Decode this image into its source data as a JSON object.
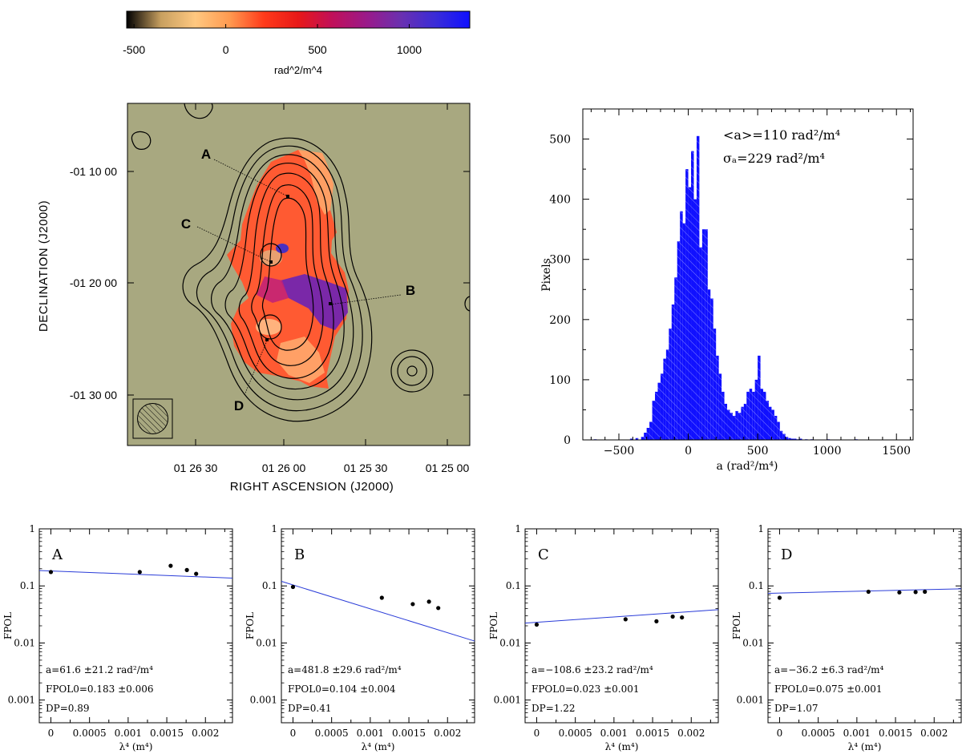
{
  "colorbar": {
    "ticks": [
      "-500",
      "0",
      "500",
      "1000"
    ],
    "tick_values": [
      -500,
      0,
      500,
      1000
    ],
    "range": [
      -540,
      1330
    ],
    "unit_label": "rad^2/m^4",
    "colors": [
      "#000000",
      "#c8a060",
      "#ffc880",
      "#ff9a50",
      "#ff3a1a",
      "#e81818",
      "#c0105a",
      "#9a1a8a",
      "#6a30b0",
      "#3a2cd8",
      "#1010ff"
    ]
  },
  "map": {
    "xlabel": "RIGHT ASCENSION  (J2000)",
    "ylabel": "DECLINATION  (J2000)",
    "x_ticks": [
      "01 26 30",
      "01 26 00",
      "01 25 30",
      "01 25 00"
    ],
    "y_ticks": [
      "-01 10 00",
      "-01 20 00",
      "-01 30 00"
    ],
    "regions": [
      {
        "name": "A"
      },
      {
        "name": "B"
      },
      {
        "name": "C"
      },
      {
        "name": "D"
      }
    ],
    "colors": {
      "background": "#a8a880",
      "contour": "#000000",
      "emission": "#ff5a32"
    }
  },
  "chart_data": [
    {
      "type": "bar",
      "id": "histogram",
      "title": "",
      "xlabel": "a (rad²/m⁴)",
      "ylabel": "Pixels",
      "xlim": [
        -760,
        1620
      ],
      "ylim": [
        0,
        550
      ],
      "x_ticks": [
        "−500",
        "0",
        "500",
        "1000",
        "1500"
      ],
      "x_tick_values": [
        -500,
        0,
        500,
        1000,
        1500
      ],
      "y_ticks": [
        "0",
        "100",
        "200",
        "300",
        "400",
        "500"
      ],
      "y_tick_values": [
        0,
        100,
        200,
        300,
        400,
        500
      ],
      "bin_width": 20,
      "bins_x": [
        -670,
        -410,
        -370,
        -330,
        -310,
        -290,
        -270,
        -250,
        -230,
        -210,
        -190,
        -170,
        -150,
        -130,
        -110,
        -90,
        -70,
        -50,
        -30,
        -10,
        10,
        30,
        50,
        70,
        90,
        110,
        130,
        150,
        170,
        190,
        210,
        230,
        250,
        270,
        290,
        310,
        330,
        350,
        370,
        390,
        410,
        430,
        450,
        470,
        490,
        510,
        530,
        550,
        570,
        590,
        610,
        630,
        650,
        670,
        690,
        710,
        730,
        750,
        770,
        790,
        810,
        850,
        890,
        1010,
        1210
      ],
      "counts": [
        1,
        2,
        3,
        5,
        12,
        20,
        30,
        65,
        80,
        95,
        110,
        135,
        150,
        185,
        225,
        270,
        330,
        380,
        360,
        450,
        420,
        480,
        400,
        505,
        320,
        350,
        350,
        250,
        235,
        185,
        140,
        110,
        80,
        60,
        50,
        45,
        40,
        48,
        45,
        55,
        60,
        80,
        85,
        80,
        100,
        140,
        85,
        80,
        65,
        55,
        50,
        40,
        30,
        15,
        10,
        5,
        3,
        2,
        2,
        1,
        2,
        1,
        1,
        1,
        1
      ],
      "annotations": [
        "<a>=110 rad²/m⁴",
        "σₐ=229 rad²/m⁴"
      ],
      "color": "#1010ff"
    },
    {
      "type": "scatter",
      "id": "panel-A",
      "title": "A",
      "xlabel": "λ⁴ (m⁴)",
      "ylabel": "FPOL",
      "yscale": "log",
      "xlim": [
        -0.00015,
        0.00235
      ],
      "ylim": [
        0.0004,
        1.0
      ],
      "x_ticks": [
        "0",
        "0.0005",
        "0.001",
        "0.0015",
        "0.002"
      ],
      "x_tick_values": [
        0,
        0.0005,
        0.001,
        0.0015,
        0.002
      ],
      "y_ticks": [
        "0.001",
        "0.01",
        "0.1",
        "1"
      ],
      "y_tick_values": [
        0.001,
        0.01,
        0.1,
        1
      ],
      "x": [
        0.0,
        0.00115,
        0.00155,
        0.00176,
        0.00188
      ],
      "y": [
        0.175,
        0.175,
        0.225,
        0.19,
        0.163
      ],
      "fit": {
        "intercept": 0.183,
        "slope_rm": 61.6
      },
      "annotations": [
        "a=61.6 ±21.2  rad²/m⁴",
        "FPOL0=0.183 ±0.006",
        "DP=0.89"
      ]
    },
    {
      "type": "scatter",
      "id": "panel-B",
      "title": "B",
      "xlabel": "λ⁴ (m⁴)",
      "ylabel": "FPOL",
      "yscale": "log",
      "xlim": [
        -0.00015,
        0.00235
      ],
      "ylim": [
        0.0004,
        1.0
      ],
      "x_ticks": [
        "0",
        "0.0005",
        "0.001",
        "0.0015",
        "0.002"
      ],
      "x_tick_values": [
        0,
        0.0005,
        0.001,
        0.0015,
        0.002
      ],
      "y_ticks": [
        "0.001",
        "0.01",
        "0.1",
        "1"
      ],
      "y_tick_values": [
        0.001,
        0.01,
        0.1,
        1
      ],
      "x": [
        0.0,
        0.00115,
        0.00155,
        0.00176,
        0.00188
      ],
      "y": [
        0.096,
        0.062,
        0.048,
        0.053,
        0.041
      ],
      "fit": {
        "intercept": 0.104,
        "slope_rm": 481.8
      },
      "annotations": [
        "a=481.8 ±29.6  rad²/m⁴",
        "FPOL0=0.104 ±0.004",
        "DP=0.41"
      ]
    },
    {
      "type": "scatter",
      "id": "panel-C",
      "title": "C",
      "xlabel": "λ⁴ (m⁴)",
      "ylabel": "FPOL",
      "yscale": "log",
      "xlim": [
        -0.00015,
        0.00235
      ],
      "ylim": [
        0.0004,
        1.0
      ],
      "x_ticks": [
        "0",
        "0.0005",
        "0.001",
        "0.0015",
        "0.002"
      ],
      "x_tick_values": [
        0,
        0.0005,
        0.001,
        0.0015,
        0.002
      ],
      "y_ticks": [
        "0.001",
        "0.01",
        "0.1",
        "1"
      ],
      "y_tick_values": [
        0.001,
        0.01,
        0.1,
        1
      ],
      "x": [
        0.0,
        0.00115,
        0.00155,
        0.00176,
        0.00188
      ],
      "y": [
        0.021,
        0.026,
        0.024,
        0.029,
        0.028
      ],
      "fit": {
        "intercept": 0.023,
        "slope_rm": -108.6
      },
      "annotations": [
        "a=−108.6 ±23.2  rad²/m⁴",
        "FPOL0=0.023 ±0.001",
        "DP=1.22"
      ]
    },
    {
      "type": "scatter",
      "id": "panel-D",
      "title": "D",
      "xlabel": "λ⁴ (m⁴)",
      "ylabel": "FPOL",
      "yscale": "log",
      "xlim": [
        -0.00015,
        0.00235
      ],
      "ylim": [
        0.0004,
        1.0
      ],
      "x_ticks": [
        "0",
        "0.0005",
        "0.001",
        "0.0015",
        "0.002"
      ],
      "x_tick_values": [
        0,
        0.0005,
        0.001,
        0.0015,
        0.002
      ],
      "y_ticks": [
        "0.001",
        "0.01",
        "0.1",
        "1"
      ],
      "y_tick_values": [
        0.001,
        0.01,
        0.1,
        1
      ],
      "x": [
        0.0,
        0.00115,
        0.00155,
        0.00176,
        0.00188
      ],
      "y": [
        0.062,
        0.079,
        0.077,
        0.078,
        0.079
      ],
      "fit": {
        "intercept": 0.075,
        "slope_rm": -36.2
      },
      "annotations": [
        "a=−36.2 ±6.3  rad²/m⁴",
        "FPOL0=0.075 ±0.001",
        "DP=1.07"
      ]
    }
  ]
}
